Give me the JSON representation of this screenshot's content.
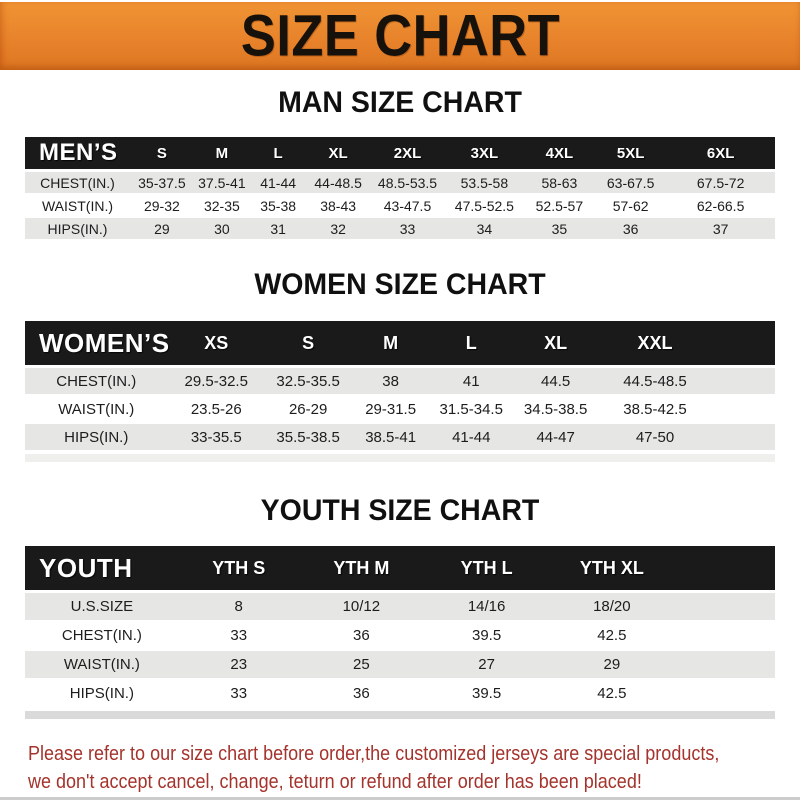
{
  "banner": {
    "title": "SIZE CHART"
  },
  "chart_data": [
    {
      "type": "table",
      "title": "MAN SIZE CHART",
      "header": [
        "MEN’S",
        "S",
        "M",
        "L",
        "XL",
        "2XL",
        "3XL",
        "4XL",
        "5XL",
        "6XL"
      ],
      "rows": [
        [
          "CHEST(IN.)",
          "35-37.5",
          "37.5-41",
          "41-44",
          "44-48.5",
          "48.5-53.5",
          "53.5-58",
          "58-63",
          "63-67.5",
          "67.5-72"
        ],
        [
          "WAIST(IN.)",
          "29-32",
          "32-35",
          "35-38",
          "38-43",
          "43-47.5",
          "47.5-52.5",
          "52.5-57",
          "57-62",
          "62-66.5"
        ],
        [
          "HIPS(IN.)",
          "29",
          "30",
          "31",
          "32",
          "33",
          "34",
          "35",
          "36",
          "37"
        ]
      ]
    },
    {
      "type": "table",
      "title": "WOMEN SIZE CHART",
      "header": [
        "WOMEN’S",
        "XS",
        "S",
        "M",
        "L",
        "XL",
        "XXL",
        ""
      ],
      "rows": [
        [
          "CHEST(IN.)",
          "29.5-32.5",
          "32.5-35.5",
          "38",
          "41",
          "44.5",
          "44.5-48.5",
          ""
        ],
        [
          "WAIST(IN.)",
          "23.5-26",
          "26-29",
          "29-31.5",
          "31.5-34.5",
          "34.5-38.5",
          "38.5-42.5",
          ""
        ],
        [
          "HIPS(IN.)",
          "33-35.5",
          "35.5-38.5",
          "38.5-41",
          "41-44",
          "44-47",
          "47-50",
          ""
        ]
      ]
    },
    {
      "type": "table",
      "title": "YOUTH SIZE CHART",
      "header": [
        "YOUTH",
        "YTH S",
        "YTH M",
        "YTH L",
        "YTH XL",
        ""
      ],
      "rows": [
        [
          "U.S.SIZE",
          "8",
          "10/12",
          "14/16",
          "18/20",
          ""
        ],
        [
          "CHEST(IN.)",
          "33",
          "36",
          "39.5",
          "42.5",
          ""
        ],
        [
          "WAIST(IN.)",
          "23",
          "25",
          "27",
          "29",
          ""
        ],
        [
          "HIPS(IN.)",
          "33",
          "36",
          "39.5",
          "42.5",
          ""
        ]
      ]
    }
  ],
  "footer": {
    "line1": "Please refer to our size chart before order,the customized jerseys are special products,",
    "line2": "we don't accept cancel, change, teturn or refund after order has been placed!"
  },
  "colors": {
    "banner_orange": "#e8832c",
    "band_black": "#1a1a1a",
    "row_gray": "#e6e6e4",
    "footer_red": "#a4332c"
  }
}
